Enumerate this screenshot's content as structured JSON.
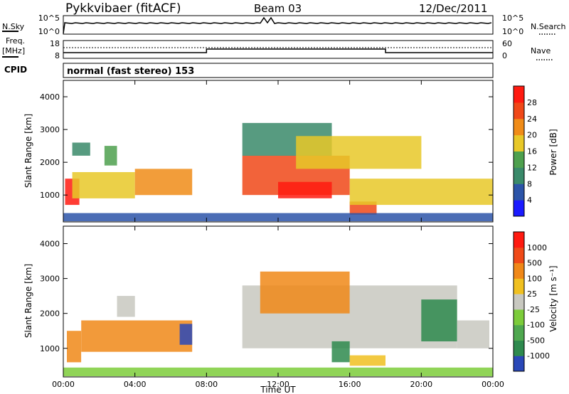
{
  "header": {
    "station": "Pykkvibaer (fitACF)",
    "beam": "Beam 03",
    "date": "12/Dec/2011"
  },
  "noise_panel": {
    "left_label": "N.Sky",
    "right_label": "N.Search",
    "left_ticks": [
      "10^5",
      "10^0"
    ],
    "right_ticks": [
      "10^5",
      "10^0"
    ]
  },
  "freq_panel": {
    "left_label_top": "Freq.",
    "left_label_unit": "[MHz]",
    "right_label": "Nave",
    "left_ticks": [
      "18",
      "8"
    ],
    "right_ticks": [
      "60",
      "0"
    ]
  },
  "cpid_panel": {
    "label": "CPID",
    "text": "normal (fast stereo) 153"
  },
  "chart_data": [
    {
      "type": "heatmap",
      "title": "",
      "ylabel": "Slant Range [km]",
      "xlabel": "",
      "x_ticks": [
        "00:00",
        "04:00",
        "08:00",
        "12:00",
        "16:00",
        "20:00",
        "00:00"
      ],
      "y_ticks": [
        1000,
        2000,
        3000,
        4000
      ],
      "ylim": [
        180,
        4500
      ],
      "colorbar": {
        "label": "Power [dB]",
        "ticks": [
          "4",
          "8",
          "12",
          "16",
          "20",
          "24",
          "28"
        ],
        "colors": [
          "#1a1aff",
          "#2c54a8",
          "#3a8a6a",
          "#4ea04e",
          "#e8c828",
          "#f08c18",
          "#f04818",
          "#ff1a10"
        ]
      },
      "regions": [
        {
          "t0": 0.1,
          "t1": 0.9,
          "r0": 700,
          "r1": 1500,
          "level": 7
        },
        {
          "t0": 0.5,
          "t1": 4.0,
          "r0": 900,
          "r1": 1700,
          "level": 4
        },
        {
          "t0": 4.0,
          "t1": 7.2,
          "r0": 1000,
          "r1": 1800,
          "level": 5
        },
        {
          "t0": 0.5,
          "t1": 1.5,
          "r0": 2200,
          "r1": 2600,
          "level": 2
        },
        {
          "t0": 2.3,
          "t1": 3.0,
          "r0": 1900,
          "r1": 2500,
          "level": 3
        },
        {
          "t0": 10.0,
          "t1": 16.0,
          "r0": 1000,
          "r1": 2200,
          "level": 6
        },
        {
          "t0": 12.0,
          "t1": 15.0,
          "r0": 900,
          "r1": 1400,
          "level": 7
        },
        {
          "t0": 10.0,
          "t1": 15.0,
          "r0": 2200,
          "r1": 3200,
          "level": 2
        },
        {
          "t0": 13.0,
          "t1": 20.0,
          "r0": 1800,
          "r1": 2800,
          "level": 4
        },
        {
          "t0": 16.0,
          "t1": 17.5,
          "r0": 400,
          "r1": 800,
          "level": 6
        },
        {
          "t0": 16.0,
          "t1": 24.0,
          "r0": 700,
          "r1": 1500,
          "level": 4
        },
        {
          "t0": 0.0,
          "t1": 24.0,
          "r0": 200,
          "r1": 450,
          "level": 1
        }
      ]
    },
    {
      "type": "heatmap",
      "title": "",
      "ylabel": "Slant Range [km]",
      "xlabel": "Time UT",
      "x_ticks": [
        "00:00",
        "04:00",
        "08:00",
        "12:00",
        "16:00",
        "20:00",
        "00:00"
      ],
      "y_ticks": [
        1000,
        2000,
        3000,
        4000
      ],
      "ylim": [
        180,
        4500
      ],
      "colorbar": {
        "label": "Velocity [m s⁻¹]",
        "ticks": [
          "1000",
          "500",
          "100",
          "25",
          "-25",
          "-100",
          "-500",
          "-1000"
        ],
        "colors": [
          "#2a48b8",
          "#2e8a4e",
          "#4fa84f",
          "#7ccc3a",
          "#c8c8c0",
          "#f0c020",
          "#f08818",
          "#f04a18",
          "#ff1a10"
        ]
      },
      "regions": [
        {
          "t0": 0.2,
          "t1": 1.0,
          "r0": 600,
          "r1": 1500,
          "level": 6
        },
        {
          "t0": 1.0,
          "t1": 7.2,
          "r0": 900,
          "r1": 1800,
          "level": 6
        },
        {
          "t0": 6.5,
          "t1": 7.2,
          "r0": 1100,
          "r1": 1700,
          "level": 0
        },
        {
          "t0": 3.0,
          "t1": 4.0,
          "r0": 1900,
          "r1": 2500,
          "level": 4
        },
        {
          "t0": 0.0,
          "t1": 24.0,
          "r0": 200,
          "r1": 450,
          "level": 3
        },
        {
          "t0": 10.0,
          "t1": 22.0,
          "r0": 1000,
          "r1": 2800,
          "level": 4
        },
        {
          "t0": 11.0,
          "t1": 16.0,
          "r0": 2000,
          "r1": 3200,
          "level": 6
        },
        {
          "t0": 15.0,
          "t1": 16.0,
          "r0": 600,
          "r1": 1200,
          "level": 1
        },
        {
          "t0": 16.0,
          "t1": 18.0,
          "r0": 500,
          "r1": 800,
          "level": 5
        },
        {
          "t0": 20.0,
          "t1": 22.0,
          "r0": 1200,
          "r1": 2400,
          "level": 1
        },
        {
          "t0": 22.0,
          "t1": 23.8,
          "r0": 1000,
          "r1": 1800,
          "level": 4
        }
      ]
    }
  ]
}
